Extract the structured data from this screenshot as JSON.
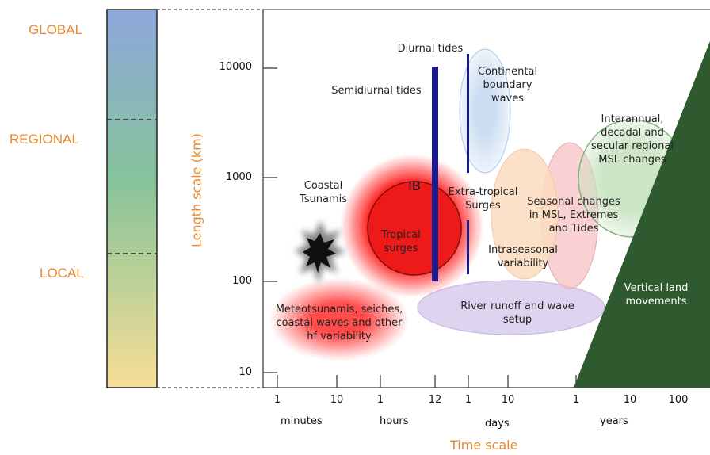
{
  "scales": {
    "global": "GLOBAL",
    "regional": "REGIONAL",
    "local": "LOCAL"
  },
  "axes": {
    "y_title": "Length scale  (km)",
    "x_title": "Time scale",
    "y_ticks": [
      "10000",
      "1000",
      "100",
      "10"
    ],
    "x_ticks": [
      "1",
      "10",
      "1",
      "12",
      "1",
      "10",
      "1",
      "10",
      "100"
    ],
    "x_units": [
      "minutes",
      "hours",
      "days",
      "years"
    ]
  },
  "processes": {
    "diurnal_tides": "Diurnal tides",
    "semidiurnal_tides": "Semidiurnal tides",
    "continental_waves": [
      "Continental",
      "boundary",
      "waves"
    ],
    "interannual": [
      "Interannual,",
      "decadal and",
      "secular regional",
      "MSL changes"
    ],
    "coastal_tsunamis": [
      "Coastal",
      "Tsunamis"
    ],
    "ib": "IB",
    "tropical_surges": [
      "Tropical",
      "surges"
    ],
    "extra_tropical": [
      "Extra-tropical",
      "Surges"
    ],
    "seasonal": [
      "Seasonal changes",
      "in MSL, Extremes",
      "and Tides"
    ],
    "intraseasonal": [
      "Intraseasonal",
      "variability"
    ],
    "meteotsunamis": [
      "Meteotsunamis, seiches,",
      "coastal waves and other",
      "hf variability"
    ],
    "river_runoff": [
      "River runoff and wave",
      "setup"
    ],
    "vertical_land": [
      "Vertical land",
      "movements"
    ]
  },
  "colors": {
    "accent_orange": "#e8892e",
    "tide_bar": "#1a1a8c",
    "vertical_land": "#2f5a2f",
    "surge_red": "#ff1a1a"
  }
}
